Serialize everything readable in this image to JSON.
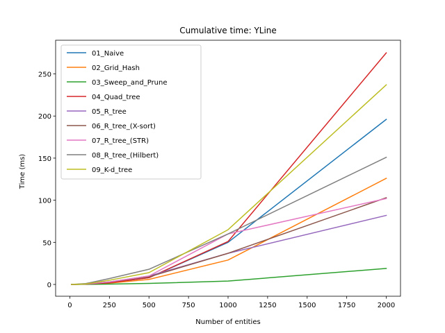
{
  "chart_data": {
    "type": "line",
    "title": "Cumulative time: YLine",
    "xlabel": "Number of entities",
    "ylabel": "Time (ms)",
    "xlim": [
      -90,
      2090
    ],
    "ylim": [
      -14,
      290
    ],
    "xticks": [
      0,
      250,
      500,
      750,
      1000,
      1250,
      1500,
      1750,
      2000
    ],
    "yticks": [
      0,
      50,
      100,
      150,
      200,
      250
    ],
    "legend_position": "upper left",
    "grid": false,
    "x": [
      10,
      100,
      250,
      500,
      1000,
      2000
    ],
    "series": [
      {
        "name": "01_Naive",
        "color": "#1f77b4",
        "values": [
          0,
          0.3,
          2,
          8,
          50,
          196
        ]
      },
      {
        "name": "02_Grid_Hash",
        "color": "#ff7f0e",
        "values": [
          0,
          0.3,
          1.5,
          6,
          29,
          126
        ]
      },
      {
        "name": "03_Sweep_and_Prune",
        "color": "#2ca02c",
        "values": [
          0,
          0.1,
          0.4,
          1.2,
          4,
          19
        ]
      },
      {
        "name": "04_Quad_tree",
        "color": "#d62728",
        "values": [
          0,
          0.3,
          2,
          8,
          51,
          275
        ]
      },
      {
        "name": "05_R_tree",
        "color": "#9467bd",
        "values": [
          0,
          0.5,
          3,
          10,
          37,
          82
        ]
      },
      {
        "name": "06_R_tree_(X-sort)",
        "color": "#8c564b",
        "values": [
          0,
          0.5,
          3,
          9,
          37,
          103
        ]
      },
      {
        "name": "07_R_tree_(STR)",
        "color": "#e377c2",
        "values": [
          0,
          0.5,
          3,
          10,
          60,
          102
        ]
      },
      {
        "name": "08_R_tree_(Hilbert)",
        "color": "#7f7f7f",
        "values": [
          0,
          1,
          7,
          18,
          60,
          151
        ]
      },
      {
        "name": "09_K-d_tree",
        "color": "#bcbd22",
        "values": [
          0,
          0.5,
          5,
          14,
          65,
          237
        ]
      }
    ]
  }
}
